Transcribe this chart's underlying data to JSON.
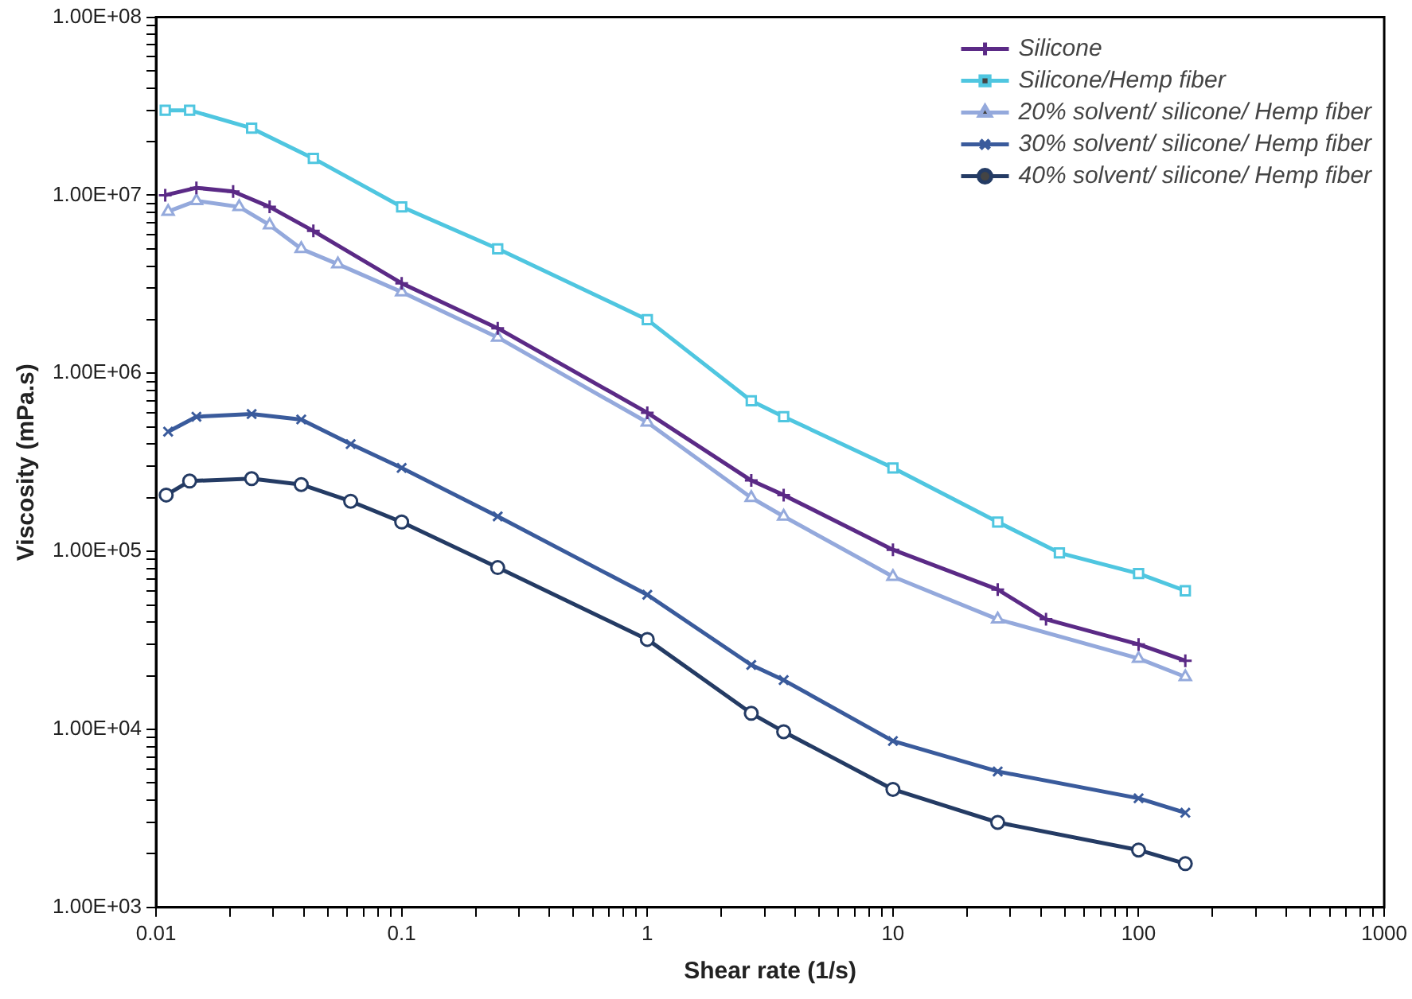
{
  "chart_data": {
    "type": "line",
    "xlabel": "Shear rate (1/s)",
    "ylabel": "Viscosity (mPa.s)",
    "log": "xy",
    "grid": false,
    "legend": "top right",
    "line_style": "solid",
    "xlim": [
      0.01,
      1000
    ],
    "ylim": [
      1000,
      100000000
    ],
    "xticks": [
      0.01,
      {
        "value": 0.02,
        "label": null
      },
      {
        "value": 0.03,
        "label": null
      },
      {
        "value": 0.04,
        "label": null
      },
      {
        "value": 0.05,
        "label": null
      },
      {
        "value": 0.06,
        "label": null
      },
      {
        "value": 0.07,
        "label": null
      },
      {
        "value": 0.08,
        "label": null
      },
      {
        "value": 0.09,
        "label": null
      },
      0.1,
      {
        "value": 0.2,
        "label": null
      },
      {
        "value": 0.3,
        "label": null
      },
      {
        "value": 0.4,
        "label": null
      },
      {
        "value": 0.5,
        "label": null
      },
      {
        "value": 0.6,
        "label": null
      },
      {
        "value": 0.7,
        "label": null
      },
      {
        "value": 0.8,
        "label": null
      },
      {
        "value": 0.9,
        "label": null
      },
      1,
      {
        "value": 2,
        "label": null
      },
      {
        "value": 3,
        "label": null
      },
      {
        "value": 4,
        "label": null
      },
      {
        "value": 5,
        "label": null
      },
      {
        "value": 6,
        "label": null
      },
      {
        "value": 7,
        "label": null
      },
      {
        "value": 8,
        "label": null
      },
      {
        "value": 9,
        "label": null
      },
      10,
      {
        "value": 20,
        "label": null
      },
      {
        "value": 30,
        "label": null
      },
      {
        "value": 40,
        "label": null
      },
      {
        "value": 50,
        "label": null
      },
      {
        "value": 60,
        "label": null
      },
      {
        "value": 70,
        "label": null
      },
      {
        "value": 80,
        "label": null
      },
      {
        "value": 90,
        "label": null
      },
      100,
      {
        "value": 200,
        "label": null
      },
      {
        "value": 300,
        "label": null
      },
      {
        "value": 400,
        "label": null
      },
      {
        "value": 500,
        "label": null
      },
      {
        "value": 600,
        "label": null
      },
      {
        "value": 700,
        "label": null
      },
      {
        "value": 800,
        "label": null
      },
      {
        "value": 900,
        "label": null
      },
      1000
    ],
    "yticks": [
      {
        "value": 1000,
        "label": "1.00E+03"
      },
      {
        "value": 2000,
        "label": null
      },
      {
        "value": 3000,
        "label": null
      },
      {
        "value": 4000,
        "label": null
      },
      {
        "value": 5000,
        "label": null
      },
      {
        "value": 6000,
        "label": null
      },
      {
        "value": 7000,
        "label": null
      },
      {
        "value": 8000,
        "label": null
      },
      {
        "value": 9000,
        "label": null
      },
      {
        "value": 10000,
        "label": "1.00E+04"
      },
      {
        "value": 20000,
        "label": null
      },
      {
        "value": 30000,
        "label": null
      },
      {
        "value": 40000,
        "label": null
      },
      {
        "value": 50000,
        "label": null
      },
      {
        "value": 60000,
        "label": null
      },
      {
        "value": 70000,
        "label": null
      },
      {
        "value": 80000,
        "label": null
      },
      {
        "value": 90000,
        "label": null
      },
      {
        "value": 100000,
        "label": "1.00E+05"
      },
      {
        "value": 200000,
        "label": null
      },
      {
        "value": 300000,
        "label": null
      },
      {
        "value": 400000,
        "label": null
      },
      {
        "value": 500000,
        "label": null
      },
      {
        "value": 600000,
        "label": null
      },
      {
        "value": 700000,
        "label": null
      },
      {
        "value": 800000,
        "label": null
      },
      {
        "value": 900000,
        "label": null
      },
      {
        "value": 1000000,
        "label": "1.00E+06"
      },
      {
        "value": 2000000,
        "label": null
      },
      {
        "value": 3000000,
        "label": null
      },
      {
        "value": 4000000,
        "label": null
      },
      {
        "value": 5000000,
        "label": null
      },
      {
        "value": 6000000,
        "label": null
      },
      {
        "value": 7000000,
        "label": null
      },
      {
        "value": 8000000,
        "label": null
      },
      {
        "value": 9000000,
        "label": null
      },
      {
        "value": 10000000,
        "label": "1.00E+07"
      },
      {
        "value": 20000000,
        "label": null
      },
      {
        "value": 30000000,
        "label": null
      },
      {
        "value": 40000000,
        "label": null
      },
      {
        "value": 50000000,
        "label": null
      },
      {
        "value": 60000000,
        "label": null
      },
      {
        "value": 70000000,
        "label": null
      },
      {
        "value": 80000000,
        "label": null
      },
      {
        "value": 90000000,
        "label": null
      },
      {
        "value": 100000000,
        "label": "1.00E+08"
      }
    ],
    "series": [
      {
        "name": "Silicone",
        "color": "#5b2a86",
        "marker": "cross",
        "x": [
          0.0109,
          0.0146,
          0.0206,
          0.029,
          0.0437,
          0.1,
          0.246,
          1,
          2.65,
          3.59,
          10,
          26.7,
          42,
          100,
          155
        ],
        "values": [
          10000000,
          11000000,
          10500000,
          8600000,
          6300000,
          3200000,
          1790000,
          600000,
          250000,
          207000,
          102000,
          61000,
          41500,
          30000,
          24300
        ]
      },
      {
        "name": "Silicone/Hemp fiber",
        "color": "#4fc6e0",
        "marker": "square",
        "x": [
          0.0109,
          0.0137,
          0.0245,
          0.0437,
          0.1,
          0.246,
          1,
          2.65,
          3.59,
          10,
          26.7,
          47.6,
          100,
          155
        ],
        "values": [
          30000000,
          30000000,
          23800000,
          16100000,
          8600000,
          5000000,
          2000000,
          700000,
          570000,
          294000,
          146000,
          98000,
          75000,
          60000
        ]
      },
      {
        "name": "20% solvent/ silicone/ Hemp fiber",
        "color": "#94a9dc",
        "marker": "triangle",
        "x": [
          0.0112,
          0.0146,
          0.0218,
          0.029,
          0.039,
          0.055,
          0.1,
          0.246,
          1,
          2.65,
          3.59,
          10,
          26.7,
          100,
          155
        ],
        "values": [
          8100000,
          9300000,
          8600000,
          6800000,
          5000000,
          4100000,
          2860000,
          1590000,
          530000,
          200000,
          157000,
          72000,
          41500,
          25000,
          19700
        ]
      },
      {
        "name": "30% solvent/ silicone/ Hemp fiber",
        "color": "#3a5b9c",
        "marker": "cross_x",
        "x": [
          0.0112,
          0.0146,
          0.0245,
          0.039,
          0.062,
          0.1,
          0.246,
          1,
          2.65,
          3.59,
          10,
          26.7,
          100,
          155
        ],
        "values": [
          470000,
          570000,
          590000,
          550000,
          400000,
          294000,
          157000,
          57000,
          23000,
          18900,
          8600,
          5800,
          4100,
          3400
        ]
      },
      {
        "name": "40% solvent/ silicone/ Hemp fiber",
        "color": "#243b64",
        "marker": "circle",
        "x": [
          0.011,
          0.0137,
          0.0245,
          0.039,
          0.062,
          0.1,
          0.246,
          1,
          2.65,
          3.59,
          10,
          26.7,
          100,
          155
        ],
        "values": [
          207000,
          248000,
          256000,
          237000,
          191000,
          146000,
          81000,
          32000,
          12300,
          9700,
          4600,
          3000,
          2100,
          1760
        ]
      }
    ]
  }
}
